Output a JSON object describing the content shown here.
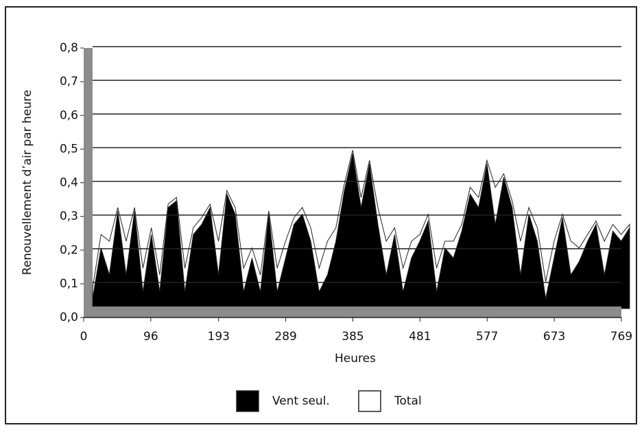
{
  "chart_data": {
    "type": "area",
    "x_label": "Heures",
    "y_label": "Renouvellement d’air par heure",
    "x": [
      0,
      12,
      24,
      36,
      48,
      60,
      72,
      84,
      96,
      108,
      120,
      132,
      144,
      156,
      168,
      180,
      192,
      204,
      216,
      228,
      240,
      252,
      264,
      276,
      288,
      300,
      312,
      324,
      336,
      348,
      360,
      372,
      384,
      396,
      408,
      420,
      432,
      444,
      456,
      468,
      480,
      492,
      504,
      516,
      528,
      540,
      552,
      564,
      576,
      588,
      600,
      612,
      624,
      636,
      648,
      660,
      672,
      684,
      696,
      708,
      720,
      732,
      744,
      756,
      768
    ],
    "series": [
      {
        "name": "Vent seul.",
        "color": "#000000",
        "values": [
          0.03,
          0.18,
          0.1,
          0.29,
          0.1,
          0.29,
          0.05,
          0.22,
          0.05,
          0.3,
          0.32,
          0.05,
          0.22,
          0.25,
          0.3,
          0.1,
          0.34,
          0.28,
          0.05,
          0.15,
          0.05,
          0.28,
          0.05,
          0.15,
          0.25,
          0.28,
          0.2,
          0.05,
          0.1,
          0.2,
          0.35,
          0.46,
          0.3,
          0.43,
          0.25,
          0.1,
          0.22,
          0.05,
          0.15,
          0.2,
          0.26,
          0.05,
          0.18,
          0.15,
          0.23,
          0.34,
          0.3,
          0.43,
          0.25,
          0.39,
          0.3,
          0.1,
          0.28,
          0.2,
          0.03,
          0.15,
          0.27,
          0.1,
          0.14,
          0.2,
          0.25,
          0.1,
          0.23,
          0.2,
          0.24
        ]
      },
      {
        "name": "Total",
        "color": "#ffffff",
        "values": [
          0.06,
          0.22,
          0.2,
          0.3,
          0.2,
          0.3,
          0.12,
          0.24,
          0.1,
          0.31,
          0.33,
          0.12,
          0.24,
          0.27,
          0.31,
          0.2,
          0.35,
          0.3,
          0.12,
          0.18,
          0.1,
          0.29,
          0.12,
          0.2,
          0.27,
          0.3,
          0.24,
          0.12,
          0.2,
          0.24,
          0.37,
          0.47,
          0.33,
          0.44,
          0.3,
          0.2,
          0.24,
          0.12,
          0.2,
          0.22,
          0.28,
          0.12,
          0.2,
          0.2,
          0.25,
          0.36,
          0.33,
          0.44,
          0.36,
          0.4,
          0.32,
          0.2,
          0.3,
          0.24,
          0.08,
          0.2,
          0.28,
          0.2,
          0.18,
          0.22,
          0.26,
          0.2,
          0.25,
          0.22,
          0.25
        ]
      }
    ],
    "xlim": [
      0,
      769
    ],
    "xticks": [
      0,
      96,
      193,
      289,
      385,
      481,
      577,
      673,
      769
    ],
    "ylim": [
      0,
      0.8
    ],
    "yticks": [
      {
        "value": 0,
        "label": "0,0"
      },
      {
        "value": 0.1,
        "label": "0,1"
      },
      {
        "value": 0.2,
        "label": "0,2"
      },
      {
        "value": 0.3,
        "label": "0,3"
      },
      {
        "value": 0.4,
        "label": "0,4"
      },
      {
        "value": 0.5,
        "label": "0,5"
      },
      {
        "value": 0.6,
        "label": "0,6"
      },
      {
        "value": 0.7,
        "label": "0,7"
      },
      {
        "value": 0.8,
        "label": "0,8"
      }
    ],
    "grid": true
  }
}
